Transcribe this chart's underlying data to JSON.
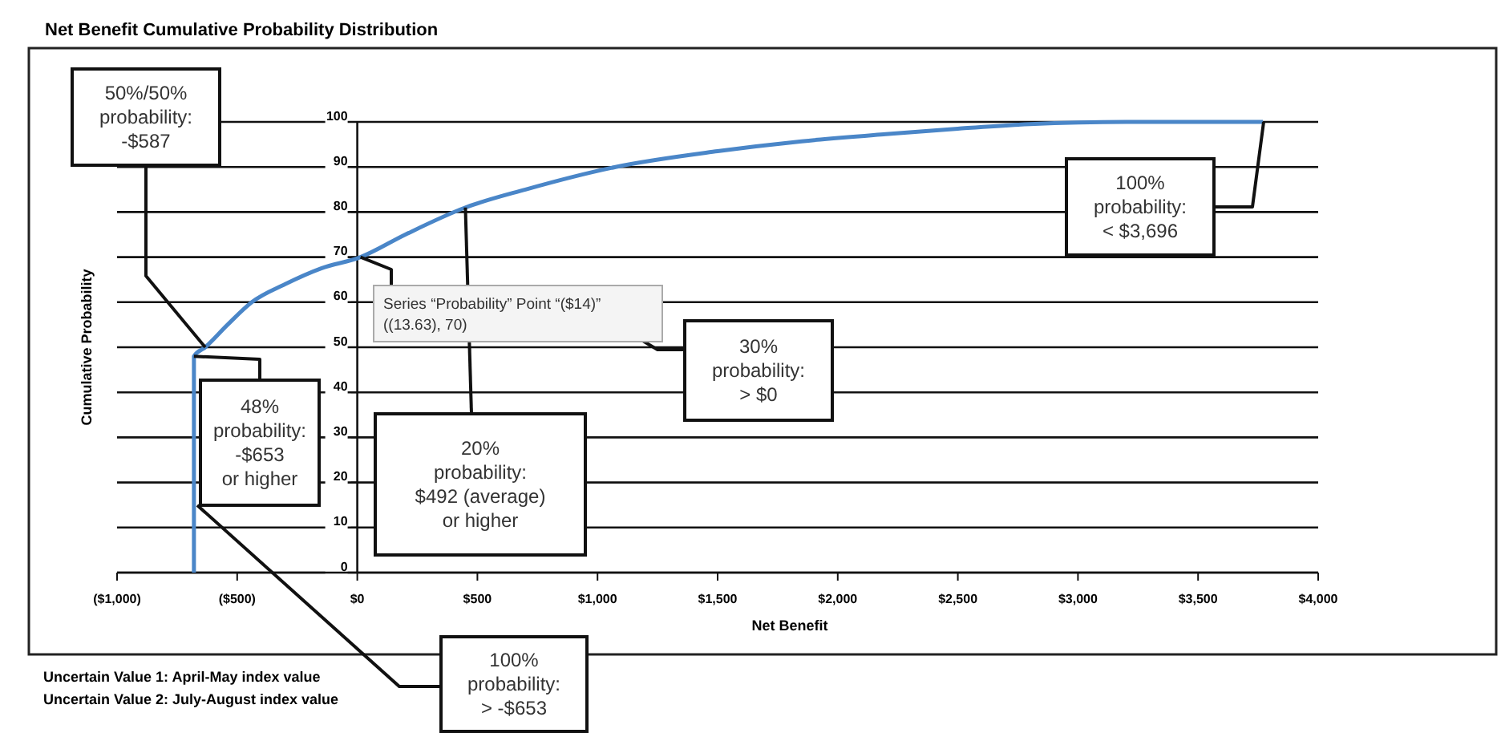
{
  "chart_data": {
    "type": "line",
    "title": "Net Benefit Cumulative Probability Distribution",
    "xlabel": "Net Benefit",
    "ylabel": "Cumulative Probability",
    "x": [
      -680,
      -680,
      -633,
      -540,
      -439,
      -300,
      -150,
      13.63,
      200,
      450,
      700,
      1075,
      1500,
      1850,
      2200,
      2500,
      2800,
      3200,
      3770
    ],
    "series": [
      {
        "color": "#4a86c8",
        "values": [
          0,
          48,
          50,
          55,
          60,
          64,
          67.5,
          70,
          75,
          81,
          85,
          90,
          93.5,
          95.7,
          97.3,
          98.5,
          99.5,
          100,
          100
        ]
      }
    ],
    "xlim": [
      -1000,
      4000
    ],
    "ylim": [
      0,
      100
    ],
    "xticks": [
      {
        "value": -1000,
        "label": "($1,000)"
      },
      {
        "value": -500,
        "label": "($500)"
      },
      {
        "value": 0,
        "label": "$0"
      },
      {
        "value": 500,
        "label": "$500"
      },
      {
        "value": 1000,
        "label": "$1,000"
      },
      {
        "value": 1500,
        "label": "$1,500"
      },
      {
        "value": 2000,
        "label": "$2,000"
      },
      {
        "value": 2500,
        "label": "$2,500"
      },
      {
        "value": 3000,
        "label": "$3,000"
      },
      {
        "value": 3500,
        "label": "$3,500"
      },
      {
        "value": 4000,
        "label": "$4,000"
      }
    ],
    "yticks": [
      0,
      10,
      20,
      30,
      40,
      50,
      60,
      70,
      80,
      90,
      100
    ],
    "grid": "y",
    "marker": "none",
    "line_style": "solid",
    "annotations": [
      {
        "text": "50%/50%\nprobability:\n-$587",
        "x": -633,
        "y": 50
      },
      {
        "text": "48%\nprobability:\n-$653\nor higher",
        "x": -680,
        "y": 48
      },
      {
        "text": "Series “Probability” Point “($14)”\n((13.63), 70)",
        "x": 13.63,
        "y": 70
      },
      "30%\nprobability:\n> $0",
      {
        "text": "20%\nprobability:\n$492 (average)\nor higher",
        "x": 450,
        "y": 81
      },
      "100%\nprobability:\n< $3,696",
      "100%\nprobability:\n> -$653",
      "Uncertain Value 1: April-May index value",
      "Uncertain Value 2: July-August index value"
    ]
  }
}
